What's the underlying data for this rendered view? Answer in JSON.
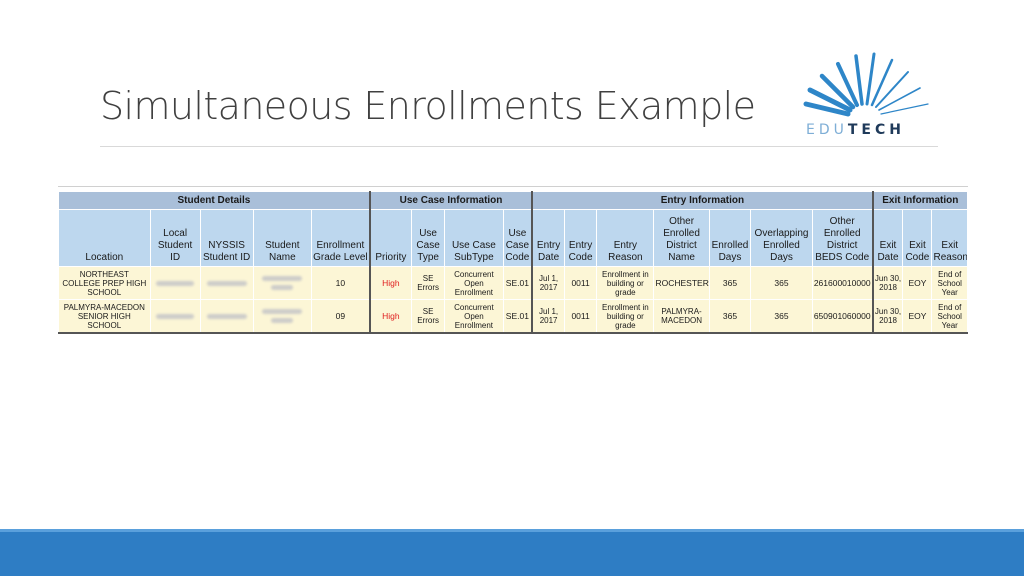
{
  "slide": {
    "title": "Simultaneous Enrollments Example",
    "logo": {
      "part1": "EDU",
      "part2": "TECH"
    },
    "accent_color": "#2e7dc4"
  },
  "table": {
    "groups": [
      "Student Details",
      "Use Case Information",
      "Entry Information",
      "Exit Information"
    ],
    "columns": [
      "Location",
      "Local Student ID",
      "NYSSIS Student ID",
      "Student Name",
      "Enrollment Grade Level",
      "Priority",
      "Use Case Type",
      "Use Case SubType",
      "Use Case Code",
      "Entry Date",
      "Entry Code",
      "Entry Reason",
      "Other Enrolled District Name",
      "Enrolled Days",
      "Overlapping Enrolled Days",
      "Other Enrolled District BEDS Code",
      "Exit Date",
      "Exit Code",
      "Exit Reason"
    ],
    "rows": [
      {
        "location": "NORTHEAST COLLEGE PREP HIGH SCHOOL",
        "grade": "10",
        "priority": "High",
        "type": "SE Errors",
        "subtype": "Concurrent Open Enrollment",
        "code": "SE.01",
        "entry_date": "Jul 1, 2017",
        "entry_code": "0011",
        "entry_reason": "Enrollment in building or grade",
        "district": "ROCHESTER",
        "enrolled_days": "365",
        "overlap_days": "365",
        "beds": "261600010000",
        "exit_date": "Jun 30, 2018",
        "exit_code": "EOY",
        "exit_reason": "End of School Year"
      },
      {
        "location": "PALMYRA-MACEDON SENIOR HIGH SCHOOL",
        "grade": "09",
        "priority": "High",
        "type": "SE Errors",
        "subtype": "Concurrent Open Enrollment",
        "code": "SE.01",
        "entry_date": "Jul 1, 2017",
        "entry_code": "0011",
        "entry_reason": "Enrollment in building or grade",
        "district": "PALMYRA-MACEDON",
        "enrolled_days": "365",
        "overlap_days": "365",
        "beds": "650901060000",
        "exit_date": "Jun 30, 2018",
        "exit_code": "EOY",
        "exit_reason": "End of School Year"
      }
    ]
  }
}
